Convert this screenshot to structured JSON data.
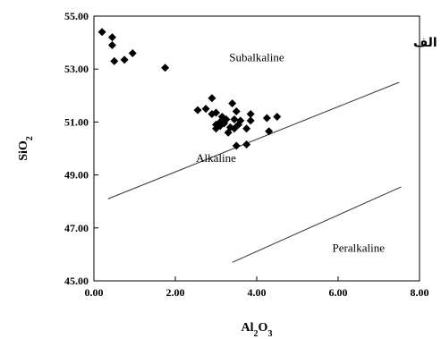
{
  "chart_data": {
    "type": "scatter",
    "title": "",
    "xlabel": "Al2O3",
    "ylabel": "SiO2",
    "xlim": [
      0,
      8
    ],
    "ylim": [
      45,
      55
    ],
    "x_ticks": [
      "0.00",
      "2.00",
      "4.00",
      "6.00",
      "8.00"
    ],
    "y_ticks": [
      "45.00",
      "47.00",
      "49.00",
      "51.00",
      "53.00",
      "55.00"
    ],
    "corner_label": "الف",
    "series": [
      {
        "marker": "diamond",
        "color": "#000000",
        "points": [
          [
            0.2,
            54.4
          ],
          [
            0.45,
            54.2
          ],
          [
            0.45,
            53.9
          ],
          [
            0.5,
            53.3
          ],
          [
            0.75,
            53.35
          ],
          [
            0.95,
            53.6
          ],
          [
            1.75,
            53.05
          ],
          [
            2.55,
            51.45
          ],
          [
            2.75,
            51.5
          ],
          [
            2.9,
            51.9
          ],
          [
            2.9,
            51.3
          ],
          [
            3.0,
            51.35
          ],
          [
            3.0,
            50.9
          ],
          [
            3.0,
            50.75
          ],
          [
            3.1,
            51.0
          ],
          [
            3.1,
            50.85
          ],
          [
            3.15,
            51.2
          ],
          [
            3.2,
            50.95
          ],
          [
            3.25,
            51.1
          ],
          [
            3.3,
            50.6
          ],
          [
            3.35,
            50.8
          ],
          [
            3.4,
            51.7
          ],
          [
            3.45,
            51.1
          ],
          [
            3.45,
            50.75
          ],
          [
            3.5,
            51.4
          ],
          [
            3.5,
            50.1
          ],
          [
            3.55,
            50.9
          ],
          [
            3.6,
            51.05
          ],
          [
            3.75,
            50.75
          ],
          [
            3.75,
            50.15
          ],
          [
            3.85,
            51.3
          ],
          [
            3.85,
            51.05
          ],
          [
            4.25,
            51.15
          ],
          [
            4.3,
            50.65
          ],
          [
            4.5,
            51.2
          ]
        ]
      }
    ],
    "boundary_lines": [
      {
        "from": [
          0.35,
          48.1
        ],
        "to": [
          7.5,
          52.5
        ]
      },
      {
        "from": [
          3.4,
          45.7
        ],
        "to": [
          7.55,
          48.55
        ]
      }
    ],
    "annotations": [
      {
        "text": "Subalkaline",
        "x": 4.0,
        "y": 53.3
      },
      {
        "text": "Alkaline",
        "x": 3.0,
        "y": 49.5
      },
      {
        "text": "Peralkaline",
        "x": 6.5,
        "y": 46.1
      }
    ]
  }
}
